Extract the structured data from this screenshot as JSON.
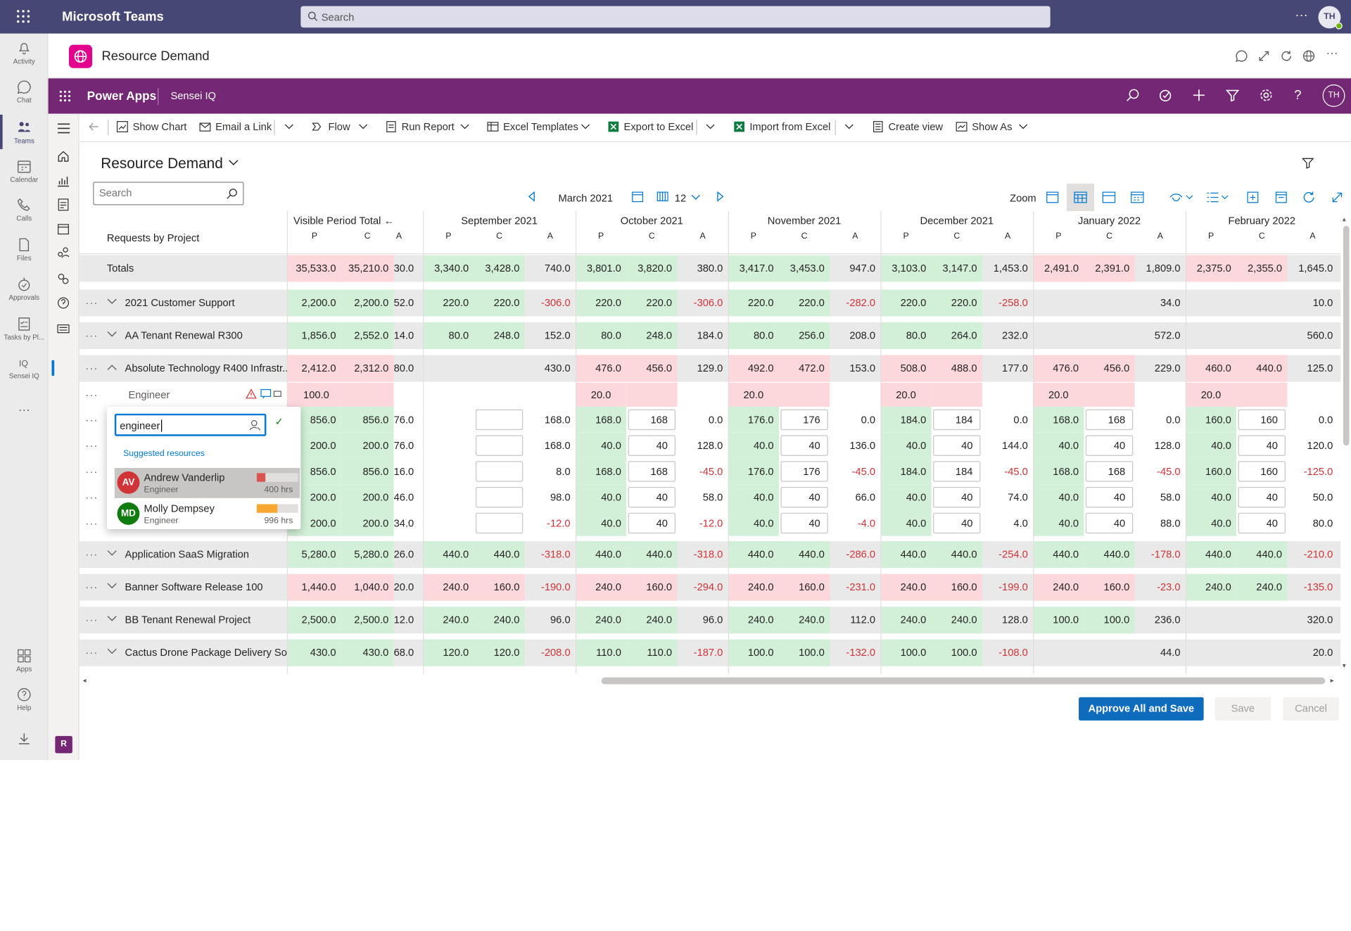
{
  "teams": {
    "app_name": "Microsoft Teams",
    "search_placeholder": "Search",
    "more": "···",
    "user_initials": "TH"
  },
  "rail": [
    {
      "label": "Activity",
      "icon": "bell-icon"
    },
    {
      "label": "Chat",
      "icon": "chat-icon"
    },
    {
      "label": "Teams",
      "icon": "teams-icon",
      "active": true
    },
    {
      "label": "Calendar",
      "icon": "calendar-icon"
    },
    {
      "label": "Calls",
      "icon": "phone-icon"
    },
    {
      "label": "Files",
      "icon": "file-icon"
    },
    {
      "label": "Approvals",
      "icon": "approvals-icon"
    },
    {
      "label": "Tasks by Pl...",
      "icon": "tasks-icon"
    },
    {
      "label": "Sensei IQ",
      "icon": "sensei-icon"
    },
    {
      "label": "···",
      "icon": "more-icon"
    },
    {
      "label": "Apps",
      "icon": "apps-icon"
    },
    {
      "label": "Help",
      "icon": "help-icon"
    }
  ],
  "app_header": {
    "title": "Resource Demand"
  },
  "powerapps": {
    "name": "Power Apps",
    "environment": "Sensei IQ",
    "user_initials": "TH"
  },
  "nav_badge": "R",
  "commands": [
    "Show Chart",
    "Email a Link",
    "Flow",
    "Run Report",
    "Excel Templates",
    "Export to Excel",
    "Import from Excel",
    "Create view",
    "Show As"
  ],
  "view": {
    "title": "Resource Demand",
    "search_placeholder": "Search"
  },
  "period": {
    "label": "March 2021",
    "count": "12",
    "zoom_label": "Zoom"
  },
  "grid": {
    "row_header": "Requests by Project",
    "visible_total_label": "Visible Period Total",
    "months": [
      "September 2021",
      "October 2021",
      "November 2021",
      "December 2021",
      "January 2022",
      "February 2022"
    ],
    "sub_headers": [
      "P",
      "C",
      "A"
    ],
    "rows": [
      {
        "name": "Totals",
        "type": "total",
        "vt": [
          "35,533.0",
          "35,210.0",
          "30.0"
        ],
        "m": [
          [
            "3,340.0",
            "3,428.0",
            "740.0"
          ],
          [
            "3,801.0",
            "3,820.0",
            "380.0"
          ],
          [
            "3,417.0",
            "3,453.0",
            "947.0"
          ],
          [
            "3,103.0",
            "3,147.0",
            "1,453.0"
          ],
          [
            "2,491.0",
            "2,391.0",
            "1,809.0"
          ],
          [
            "2,375.0",
            "2,355.0",
            "1,645.0"
          ]
        ]
      },
      {
        "name": "2021 Customer Support",
        "type": "project",
        "vt": [
          "2,200.0",
          "2,200.0",
          "52.0"
        ],
        "m": [
          [
            "220.0",
            "220.0",
            "-306.0"
          ],
          [
            "220.0",
            "220.0",
            "-306.0"
          ],
          [
            "220.0",
            "220.0",
            "-282.0"
          ],
          [
            "220.0",
            "220.0",
            "-258.0"
          ],
          [
            "",
            "",
            "34.0"
          ],
          [
            "",
            "",
            "10.0"
          ]
        ]
      },
      {
        "name": "AA Tenant Renewal R300",
        "type": "project",
        "vt": [
          "1,856.0",
          "2,552.0",
          "14.0"
        ],
        "m": [
          [
            "80.0",
            "248.0",
            "152.0"
          ],
          [
            "80.0",
            "248.0",
            "184.0"
          ],
          [
            "80.0",
            "256.0",
            "208.0"
          ],
          [
            "80.0",
            "264.0",
            "232.0"
          ],
          [
            "",
            "",
            "572.0"
          ],
          [
            "",
            "",
            "560.0"
          ]
        ]
      },
      {
        "name": "Absolute Technology R400 Infrastr...",
        "type": "project-open",
        "vt": [
          "2,412.0",
          "2,312.0",
          "80.0"
        ],
        "m": [
          [
            "",
            "",
            "430.0"
          ],
          [
            "476.0",
            "456.0",
            "129.0"
          ],
          [
            "492.0",
            "472.0",
            "153.0"
          ],
          [
            "508.0",
            "488.0",
            "177.0"
          ],
          [
            "476.0",
            "456.0",
            "229.0"
          ],
          [
            "460.0",
            "440.0",
            "125.0"
          ]
        ]
      },
      {
        "name": "Engineer",
        "type": "role",
        "vt": [
          "100.0",
          "",
          ""
        ],
        "m": [
          [
            "",
            "",
            ""
          ],
          [
            "20.0",
            "",
            ""
          ],
          [
            "20.0",
            "",
            ""
          ],
          [
            "20.0",
            "",
            ""
          ],
          [
            "20.0",
            "",
            ""
          ],
          [
            "20.0",
            "",
            ""
          ]
        ]
      },
      {
        "name": "",
        "type": "assign",
        "vt": [
          "856.0",
          "856.0",
          "76.0"
        ],
        "m": [
          [
            "",
            "",
            "168.0"
          ],
          [
            "168.0",
            "168",
            "0.0"
          ],
          [
            "176.0",
            "176",
            "0.0"
          ],
          [
            "184.0",
            "184",
            "0.0"
          ],
          [
            "168.0",
            "168",
            "0.0"
          ],
          [
            "160.0",
            "160",
            "0.0"
          ]
        ]
      },
      {
        "name": "",
        "type": "assign",
        "vt": [
          "200.0",
          "200.0",
          "76.0"
        ],
        "m": [
          [
            "",
            "",
            "168.0"
          ],
          [
            "40.0",
            "40",
            "128.0"
          ],
          [
            "40.0",
            "40",
            "136.0"
          ],
          [
            "40.0",
            "40",
            "144.0"
          ],
          [
            "40.0",
            "40",
            "128.0"
          ],
          [
            "40.0",
            "40",
            "120.0"
          ]
        ]
      },
      {
        "name": "",
        "type": "assign",
        "vt": [
          "856.0",
          "856.0",
          "16.0"
        ],
        "m": [
          [
            "",
            "",
            "8.0"
          ],
          [
            "168.0",
            "168",
            "-45.0"
          ],
          [
            "176.0",
            "176",
            "-45.0"
          ],
          [
            "184.0",
            "184",
            "-45.0"
          ],
          [
            "168.0",
            "168",
            "-45.0"
          ],
          [
            "160.0",
            "160",
            "-125.0"
          ]
        ]
      },
      {
        "name": "",
        "type": "assign",
        "vt": [
          "200.0",
          "200.0",
          "46.0"
        ],
        "m": [
          [
            "",
            "",
            "98.0"
          ],
          [
            "40.0",
            "40",
            "58.0"
          ],
          [
            "40.0",
            "40",
            "66.0"
          ],
          [
            "40.0",
            "40",
            "74.0"
          ],
          [
            "40.0",
            "40",
            "58.0"
          ],
          [
            "40.0",
            "40",
            "50.0"
          ]
        ]
      },
      {
        "name": "",
        "type": "assign",
        "vt": [
          "200.0",
          "200.0",
          "34.0"
        ],
        "m": [
          [
            "",
            "",
            "-12.0"
          ],
          [
            "40.0",
            "40",
            "-12.0"
          ],
          [
            "40.0",
            "40",
            "-4.0"
          ],
          [
            "40.0",
            "40",
            "4.0"
          ],
          [
            "40.0",
            "40",
            "88.0"
          ],
          [
            "40.0",
            "40",
            "80.0"
          ]
        ]
      },
      {
        "name": "Application SaaS Migration",
        "type": "project",
        "vt": [
          "5,280.0",
          "5,280.0",
          "26.0"
        ],
        "m": [
          [
            "440.0",
            "440.0",
            "-318.0"
          ],
          [
            "440.0",
            "440.0",
            "-318.0"
          ],
          [
            "440.0",
            "440.0",
            "-286.0"
          ],
          [
            "440.0",
            "440.0",
            "-254.0"
          ],
          [
            "440.0",
            "440.0",
            "-178.0"
          ],
          [
            "440.0",
            "440.0",
            "-210.0"
          ]
        ]
      },
      {
        "name": "Banner Software Release 100",
        "type": "project",
        "vt": [
          "1,440.0",
          "1,040.0",
          "20.0"
        ],
        "m": [
          [
            "240.0",
            "160.0",
            "-190.0"
          ],
          [
            "240.0",
            "160.0",
            "-294.0"
          ],
          [
            "240.0",
            "160.0",
            "-231.0"
          ],
          [
            "240.0",
            "160.0",
            "-199.0"
          ],
          [
            "240.0",
            "160.0",
            "-23.0"
          ],
          [
            "240.0",
            "240.0",
            "-135.0"
          ]
        ]
      },
      {
        "name": "BB Tenant Renewal Project",
        "type": "project",
        "vt": [
          "2,500.0",
          "2,500.0",
          "12.0"
        ],
        "m": [
          [
            "240.0",
            "240.0",
            "96.0"
          ],
          [
            "240.0",
            "240.0",
            "96.0"
          ],
          [
            "240.0",
            "240.0",
            "112.0"
          ],
          [
            "240.0",
            "240.0",
            "128.0"
          ],
          [
            "100.0",
            "100.0",
            "236.0"
          ],
          [
            "",
            "",
            "320.0"
          ]
        ]
      },
      {
        "name": "Cactus Drone Package Delivery So...",
        "type": "project",
        "vt": [
          "430.0",
          "430.0",
          "68.0"
        ],
        "m": [
          [
            "120.0",
            "120.0",
            "-208.0"
          ],
          [
            "110.0",
            "110.0",
            "-187.0"
          ],
          [
            "100.0",
            "100.0",
            "-132.0"
          ],
          [
            "100.0",
            "100.0",
            "-108.0"
          ],
          [
            "",
            "",
            "44.0"
          ],
          [
            "",
            "",
            "20.0"
          ]
        ]
      }
    ]
  },
  "popup": {
    "query": "engineer",
    "suggested_label": "Suggested resources",
    "resources": [
      {
        "initials": "AV",
        "name": "Andrew Vanderlip",
        "role": "Engineer",
        "hours": "400 hrs",
        "color": "#d13438",
        "bar_color": "#d9534f",
        "bar_fill": 0.2
      },
      {
        "initials": "MD",
        "name": "Molly Dempsey",
        "role": "Engineer",
        "hours": "996 hrs",
        "color": "#107c10",
        "bar_color": "#f7a830",
        "bar_fill": 0.5
      }
    ]
  },
  "footer": {
    "approve": "Approve All and Save",
    "save": "Save",
    "cancel": "Cancel"
  },
  "colors": {
    "red_cell": "#fcd7dc",
    "green_cell": "#d2f0d7",
    "grey_cell": "#e9e9e9",
    "negative": "#d13438"
  }
}
